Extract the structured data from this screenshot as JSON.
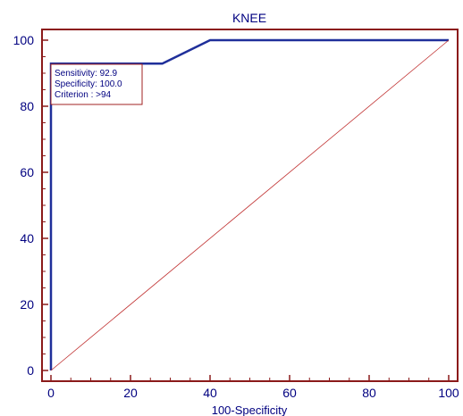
{
  "chart_data": {
    "type": "line",
    "title": "KNEE",
    "xlabel": "100-Specificity",
    "ylabel": "",
    "xlim": [
      0,
      100
    ],
    "ylim": [
      0,
      100
    ],
    "xticks": [
      0,
      20,
      40,
      60,
      80,
      100
    ],
    "yticks": [
      0,
      20,
      40,
      60,
      80,
      100
    ],
    "grid": false,
    "series": [
      {
        "name": "",
        "color": "#1f2f9a",
        "x": [
          0,
          0,
          28,
          40,
          100
        ],
        "y": [
          0,
          92.9,
          92.9,
          100,
          100
        ]
      },
      {
        "name": "",
        "style": "reference-diagonal",
        "color": "#c03030",
        "x": [
          0,
          100
        ],
        "y": [
          0,
          100
        ]
      }
    ],
    "annotation": {
      "lines": [
        "Sensitivity: 92.9",
        "Specificity: 100.0",
        "Criterion : >94"
      ],
      "border_color": "#a02020"
    },
    "axis_color": "#8b1a1a",
    "text_color": "#000080"
  }
}
